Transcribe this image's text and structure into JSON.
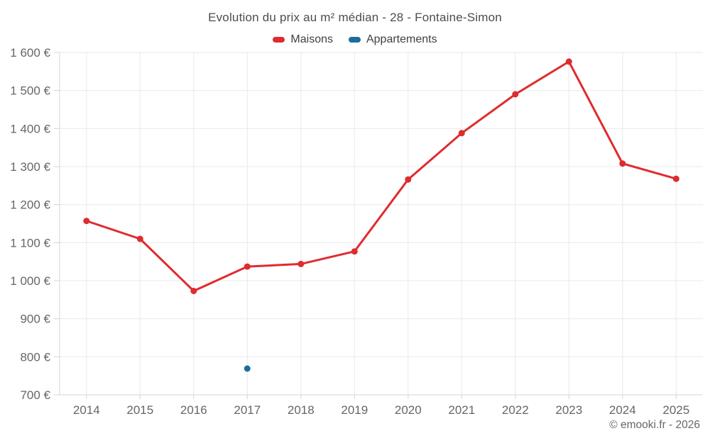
{
  "chart_data": {
    "type": "line",
    "title": "Evolution du prix au m² médian - 28 - Fontaine-Simon",
    "categories": [
      "2014",
      "2015",
      "2016",
      "2017",
      "2018",
      "2019",
      "2020",
      "2021",
      "2022",
      "2023",
      "2024",
      "2025"
    ],
    "series": [
      {
        "name": "Maisons",
        "color": "#df2b2e",
        "values": [
          1157,
          1110,
          973,
          1037,
          1044,
          1077,
          1266,
          1388,
          1490,
          1576,
          1308,
          1268
        ]
      },
      {
        "name": "Appartements",
        "color": "#1a6d9d",
        "values": [
          null,
          null,
          null,
          769,
          null,
          null,
          null,
          null,
          null,
          null,
          null,
          null
        ]
      }
    ],
    "xlabel": "",
    "ylabel": "",
    "ylim": [
      700,
      1600
    ],
    "ytick_step": 100,
    "ytick_suffix": " €",
    "grid": true,
    "legend_position": "top",
    "credit": "© emooki.fr - 2026",
    "colors": {
      "grid": "#e9e9e9",
      "axis": "#d4d4d4",
      "label": "#666666",
      "title": "#4d4d4d"
    }
  }
}
